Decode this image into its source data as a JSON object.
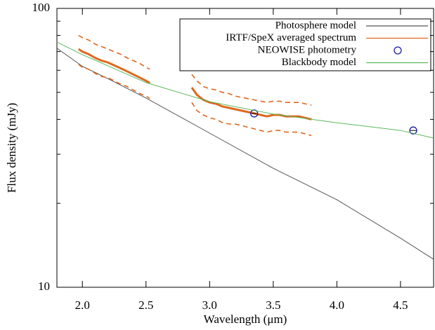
{
  "chart_data": {
    "type": "line",
    "x_label": "Wavelength (μm)",
    "y_label": "Flux density (mJy)",
    "xlim": [
      1.8,
      4.76
    ],
    "ylim": [
      10,
      100
    ],
    "log_y": true,
    "xticks": [
      {
        "value": 2,
        "label": "2.0"
      },
      {
        "value": 2.5,
        "label": "2.5"
      },
      {
        "value": 3,
        "label": "3.0"
      },
      {
        "value": 3.5,
        "label": "3.5"
      },
      {
        "value": 4,
        "label": "4.0"
      },
      {
        "value": 4.5,
        "label": "4.5"
      }
    ],
    "yticks": [
      10,
      100
    ],
    "y_minor_ticks": [
      20,
      30,
      40,
      50,
      60,
      70,
      80,
      90
    ],
    "legend": "upper right",
    "series": [
      {
        "name": "Photosphere model",
        "color": "#555555",
        "x": [
          1.8,
          2.0,
          2.2,
          2.5,
          3.0,
          3.5,
          4.0,
          4.5,
          4.76
        ],
        "values": [
          72,
          62,
          56,
          47.7,
          35.7,
          26.7,
          20.6,
          15,
          12.6
        ]
      },
      {
        "name": "IRTF/SpeX averaged spectrum",
        "color": "#e0671e",
        "x": [
          1.97,
          2.0,
          2.05,
          2.1,
          2.15,
          2.2,
          2.25,
          2.3,
          2.35,
          2.4,
          2.45,
          2.5,
          2.53,
          null,
          2.86,
          2.9,
          2.95,
          3.0,
          3.05,
          3.1,
          3.15,
          3.2,
          3.25,
          3.3,
          3.35,
          3.4,
          3.45,
          3.5,
          3.55,
          3.6,
          3.65,
          3.7,
          3.75,
          3.8
        ],
        "values": [
          71.5,
          70,
          68.5,
          66.5,
          65,
          64,
          62.5,
          61,
          59.5,
          58,
          56.5,
          55,
          54,
          null,
          52,
          49,
          47,
          46,
          45.5,
          44.5,
          44,
          43.5,
          43,
          42.5,
          42,
          41.5,
          41,
          41.5,
          41.5,
          41,
          41,
          41,
          40.5,
          40
        ],
        "upper": [
          80,
          78.5,
          77,
          74.5,
          73,
          71.5,
          70,
          68.5,
          66.5,
          65,
          63.5,
          61.5,
          60.5,
          null,
          58,
          55,
          52.5,
          51.5,
          51,
          50,
          49.5,
          48.5,
          48,
          47.5,
          47,
          46.5,
          46,
          46.5,
          46.5,
          46,
          46,
          46,
          45.5,
          45
        ],
        "lower": [
          63,
          61.5,
          60.5,
          58.5,
          57,
          56.5,
          55,
          53.5,
          52.5,
          51,
          49.5,
          48.5,
          47.5,
          null,
          46,
          43,
          41.5,
          40.5,
          40,
          39,
          38.5,
          38.5,
          38,
          37.5,
          37,
          36.5,
          36,
          36.5,
          36.5,
          36,
          36,
          36,
          35.5,
          35
        ]
      },
      {
        "name": "NEOWISE photometry",
        "color": "#1a1aa0",
        "marker": "circle",
        "x": [
          3.35,
          4.6
        ],
        "values": [
          42,
          36.5
        ],
        "xerr": [
          0.02,
          0.03
        ]
      },
      {
        "name": "Blackbody model",
        "color": "#5cb85c",
        "x": [
          1.8,
          2.0,
          2.5,
          3.0,
          3.5,
          4.0,
          4.5,
          4.76
        ],
        "values": [
          75.7,
          68.3,
          54.2,
          46.3,
          41.8,
          38.9,
          36.5,
          34.3
        ]
      }
    ]
  }
}
